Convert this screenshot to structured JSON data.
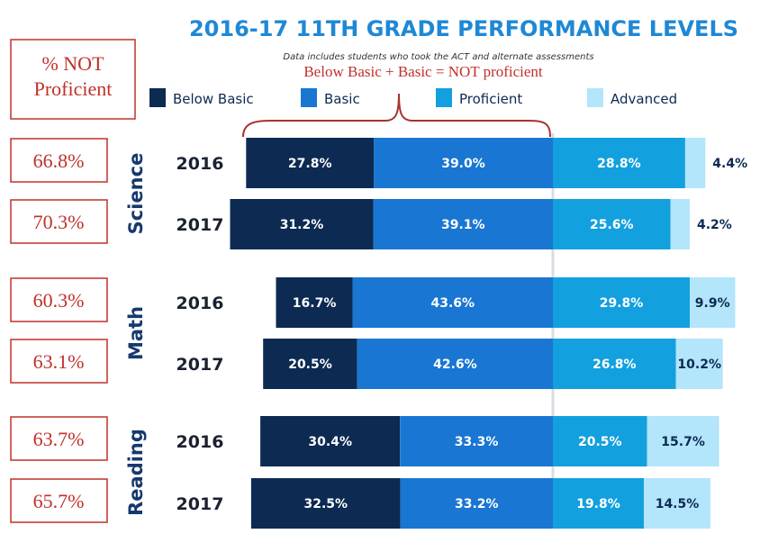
{
  "title": "2016-17 11TH GRADE PERFORMANCE LEVELS",
  "subtitle": "Data includes students who took the ACT and alternate assessments",
  "annotation": "Below Basic + Basic = NOT proficient",
  "not_proficient_header": [
    "% NOT",
    "Proficient"
  ],
  "chart_data": {
    "type": "bar",
    "orientation": "horizontal",
    "stacked": "diverging",
    "title": "2016-17 11TH GRADE PERFORMANCE LEVELS",
    "legend_position": "top",
    "categories": [
      "Below Basic",
      "Basic",
      "Proficient",
      "Advanced"
    ],
    "colors": {
      "Below Basic": "#0c2a52",
      "Basic": "#1976d2",
      "Proficient": "#13a0de",
      "Advanced": "#b3e5fb"
    },
    "groups": [
      {
        "subject": "Science",
        "rows": [
          {
            "year": "2016",
            "not_proficient": "66.8%",
            "values": [
              27.8,
              39.0,
              28.8,
              4.4
            ],
            "labels": [
              "27.8%",
              "39.0%",
              "28.8%",
              "4.4%"
            ]
          },
          {
            "year": "2017",
            "not_proficient": "70.3%",
            "values": [
              31.2,
              39.1,
              25.6,
              4.2
            ],
            "labels": [
              "31.2%",
              "39.1%",
              "25.6%",
              "4.2%"
            ]
          }
        ]
      },
      {
        "subject": "Math",
        "rows": [
          {
            "year": "2016",
            "not_proficient": "60.3%",
            "values": [
              16.7,
              43.6,
              29.8,
              9.9
            ],
            "labels": [
              "16.7%",
              "43.6%",
              "29.8%",
              "9.9%"
            ]
          },
          {
            "year": "2017",
            "not_proficient": "63.1%",
            "values": [
              20.5,
              42.6,
              26.8,
              10.2
            ],
            "labels": [
              "20.5%",
              "42.6%",
              "26.8%",
              "10.2%"
            ]
          }
        ]
      },
      {
        "subject": "Reading",
        "rows": [
          {
            "year": "2016",
            "not_proficient": "63.7%",
            "values": [
              30.4,
              33.3,
              20.5,
              15.7
            ],
            "labels": [
              "30.4%",
              "33.3%",
              "20.5%",
              "15.7%"
            ]
          },
          {
            "year": "2017",
            "not_proficient": "65.7%",
            "values": [
              32.5,
              33.2,
              19.8,
              14.5
            ],
            "labels": [
              "32.5%",
              "33.2%",
              "19.8%",
              "14.5%"
            ]
          }
        ]
      }
    ]
  }
}
